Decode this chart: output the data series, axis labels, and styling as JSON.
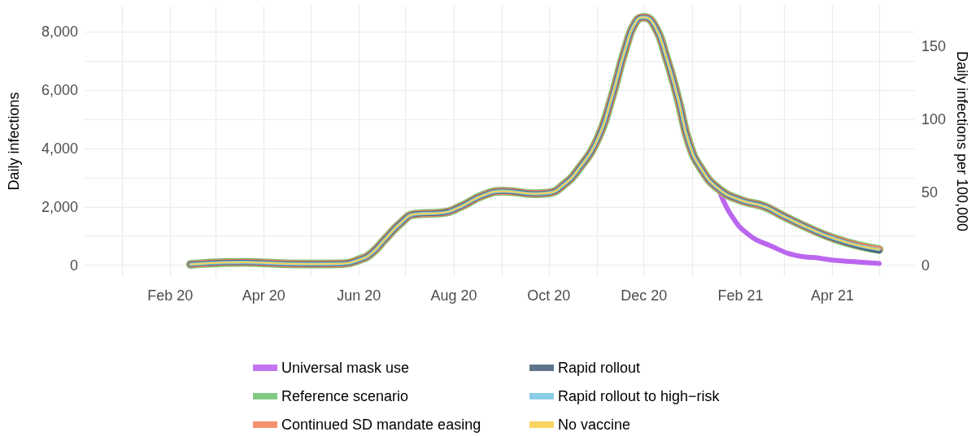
{
  "chart_data": {
    "type": "line",
    "ylabel": "Daily infections",
    "y2label": "Daily infections per 100,000",
    "x": [
      "2020-02-14",
      "2020-03-19",
      "2020-04-15",
      "2020-05-03",
      "2020-05-21",
      "2020-06-02",
      "2020-06-09",
      "2020-06-18",
      "2020-06-28",
      "2020-07-07",
      "2020-07-25",
      "2020-08-05",
      "2020-08-20",
      "2020-09-02",
      "2020-09-22",
      "2020-10-01",
      "2020-10-11",
      "2020-10-20",
      "2020-11-01",
      "2020-11-10",
      "2020-11-19",
      "2020-11-26",
      "2020-12-01",
      "2020-12-08",
      "2020-12-15",
      "2020-12-23",
      "2020-12-30",
      "2021-01-07",
      "2021-01-18",
      "2021-02-01",
      "2021-02-16",
      "2021-03-01",
      "2021-03-21",
      "2021-04-02",
      "2021-04-18",
      "2021-05-01"
    ],
    "series": [
      {
        "name": "Universal mask use",
        "color": "#bb66ee",
        "x": [
          "2021-01-18",
          "2021-01-26",
          "2021-02-06",
          "2021-02-20",
          "2021-03-11",
          "2021-03-21",
          "2021-04-02",
          "2021-04-18",
          "2021-05-01"
        ],
        "values": [
          2620,
          1720,
          1060,
          670,
          310,
          260,
          170,
          110,
          60
        ]
      },
      {
        "name": "Reference scenario",
        "color": "#74c476",
        "values": [
          30,
          100,
          50,
          40,
          50,
          200,
          400,
          900,
          1450,
          1750,
          1800,
          2000,
          2400,
          2540,
          2450,
          2480,
          2780,
          3290,
          4290,
          5680,
          7400,
          8360,
          8500,
          8200,
          7200,
          5690,
          4180,
          3290,
          2620,
          2230,
          2020,
          1670,
          1170,
          920,
          670,
          540
        ]
      },
      {
        "name": "Continued SD mandate easing",
        "color": "#f4845f",
        "values": [
          30,
          100,
          50,
          40,
          50,
          200,
          400,
          900,
          1450,
          1750,
          1800,
          2000,
          2400,
          2540,
          2450,
          2480,
          2780,
          3290,
          4290,
          5680,
          7400,
          8360,
          8500,
          8200,
          7200,
          5690,
          4180,
          3290,
          2620,
          2230,
          2020,
          1670,
          1170,
          920,
          670,
          540
        ]
      },
      {
        "name": "Rapid rollout",
        "color": "#4d6680",
        "values": [
          30,
          100,
          50,
          40,
          50,
          200,
          400,
          900,
          1450,
          1750,
          1800,
          2000,
          2400,
          2540,
          2450,
          2480,
          2780,
          3290,
          4290,
          5680,
          7400,
          8360,
          8500,
          8200,
          7200,
          5690,
          4180,
          3290,
          2620,
          2230,
          2020,
          1670,
          1170,
          910,
          650,
          490
        ]
      },
      {
        "name": "Rapid rollout to high−risk",
        "color": "#7ec8e3",
        "values": [
          30,
          100,
          50,
          40,
          50,
          200,
          400,
          900,
          1450,
          1750,
          1800,
          2000,
          2400,
          2540,
          2450,
          2480,
          2780,
          3290,
          4290,
          5680,
          7400,
          8360,
          8500,
          8200,
          7200,
          5690,
          4180,
          3290,
          2620,
          2230,
          2020,
          1670,
          1170,
          920,
          670,
          540
        ]
      },
      {
        "name": "No vaccine",
        "color": "#f8cf4f",
        "values": [
          30,
          100,
          50,
          40,
          50,
          200,
          400,
          900,
          1450,
          1750,
          1800,
          2000,
          2400,
          2540,
          2450,
          2480,
          2780,
          3290,
          4290,
          5680,
          7400,
          8360,
          8500,
          8200,
          7200,
          5690,
          4180,
          3290,
          2620,
          2230,
          2020,
          1670,
          1170,
          920,
          670,
          540
        ]
      }
    ],
    "xlim": [
      "2019-12-08",
      "2021-05-24"
    ],
    "xticks": [
      {
        "value": "2020-01-01",
        "label": null
      },
      {
        "value": "2020-02-01",
        "label": "Feb 20"
      },
      {
        "value": "2020-03-01",
        "label": null
      },
      {
        "value": "2020-04-01",
        "label": "Apr 20"
      },
      {
        "value": "2020-05-01",
        "label": null
      },
      {
        "value": "2020-06-01",
        "label": "Jun 20"
      },
      {
        "value": "2020-07-01",
        "label": null
      },
      {
        "value": "2020-08-01",
        "label": "Aug 20"
      },
      {
        "value": "2020-09-01",
        "label": null
      },
      {
        "value": "2020-10-01",
        "label": "Oct 20"
      },
      {
        "value": "2020-11-01",
        "label": null
      },
      {
        "value": "2020-12-01",
        "label": "Dec 20"
      },
      {
        "value": "2021-01-01",
        "label": null
      },
      {
        "value": "2021-02-01",
        "label": "Feb 21"
      },
      {
        "value": "2021-03-01",
        "label": null
      },
      {
        "value": "2021-04-01",
        "label": "Apr 21"
      },
      {
        "value": "2021-05-01",
        "label": null
      }
    ],
    "ylim": [
      -400,
      8900
    ],
    "yticks": [
      {
        "value": 0,
        "label": "0"
      },
      {
        "value": 1000,
        "label": null
      },
      {
        "value": 2000,
        "label": "2,000"
      },
      {
        "value": 3000,
        "label": null
      },
      {
        "value": 4000,
        "label": "4,000"
      },
      {
        "value": 5000,
        "label": null
      },
      {
        "value": 6000,
        "label": "6,000"
      },
      {
        "value": 7000,
        "label": null
      },
      {
        "value": 8000,
        "label": "8,000"
      }
    ],
    "y2lim": [
      -8,
      178
    ],
    "y2ticks": [
      0,
      50,
      100,
      150
    ],
    "grid": true,
    "legend": "bottom",
    "marker": "none",
    "line_style": "solid"
  }
}
